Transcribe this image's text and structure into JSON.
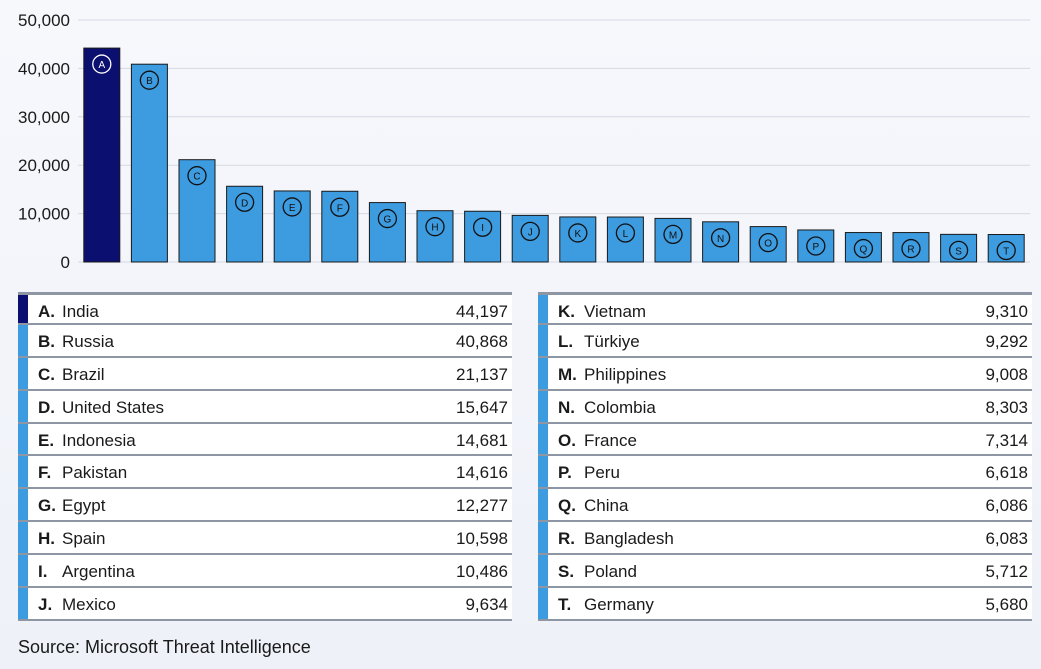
{
  "chart_data": {
    "type": "bar",
    "ylim": [
      0,
      50000
    ],
    "yticks": [
      0,
      10000,
      20000,
      30000,
      40000,
      50000
    ],
    "ytick_labels": [
      "0",
      "10,000",
      "20,000",
      "30,000",
      "40,000",
      "50,000"
    ],
    "grid": true,
    "categories": [
      "A",
      "B",
      "C",
      "D",
      "E",
      "F",
      "G",
      "H",
      "I",
      "J",
      "K",
      "L",
      "M",
      "N",
      "O",
      "P",
      "Q",
      "R",
      "S",
      "T"
    ],
    "values": [
      44197,
      40868,
      21137,
      15647,
      14681,
      14616,
      12277,
      10598,
      10486,
      9634,
      9310,
      9292,
      9008,
      8303,
      7314,
      6618,
      6086,
      6083,
      5712,
      5680
    ],
    "colors": {
      "highlight": "#0a0f70",
      "bar": "#3d9be0",
      "grid": "#d3d8e2"
    },
    "highlight_index": 0
  },
  "table_rows": [
    {
      "letter": "A.",
      "name": "India",
      "value": "44,197"
    },
    {
      "letter": "B.",
      "name": "Russia",
      "value": "40,868"
    },
    {
      "letter": "C.",
      "name": "Brazil",
      "value": "21,137"
    },
    {
      "letter": "D.",
      "name": "United States",
      "value": "15,647"
    },
    {
      "letter": "E.",
      "name": "Indonesia",
      "value": "14,681"
    },
    {
      "letter": "F.",
      "name": "Pakistan",
      "value": "14,616"
    },
    {
      "letter": "G.",
      "name": "Egypt",
      "value": "12,277"
    },
    {
      "letter": "H.",
      "name": "Spain",
      "value": "10,598"
    },
    {
      "letter": "I.",
      "name": "Argentina",
      "value": "10,486"
    },
    {
      "letter": "J.",
      "name": "Mexico",
      "value": "9,634"
    },
    {
      "letter": "K.",
      "name": "Vietnam",
      "value": "9,310"
    },
    {
      "letter": "L.",
      "name": "Türkiye",
      "value": "9,292"
    },
    {
      "letter": "M.",
      "name": "Philippines",
      "value": "9,008"
    },
    {
      "letter": "N.",
      "name": "Colombia",
      "value": "8,303"
    },
    {
      "letter": "O.",
      "name": "France",
      "value": "7,314"
    },
    {
      "letter": "P.",
      "name": "Peru",
      "value": "6,618"
    },
    {
      "letter": "Q.",
      "name": "China",
      "value": "6,086"
    },
    {
      "letter": "R.",
      "name": "Bangladesh",
      "value": "6,083"
    },
    {
      "letter": "S.",
      "name": "Poland",
      "value": "5,712"
    },
    {
      "letter": "T.",
      "name": "Germany",
      "value": "5,680"
    }
  ],
  "source": "Source: Microsoft Threat Intelligence"
}
